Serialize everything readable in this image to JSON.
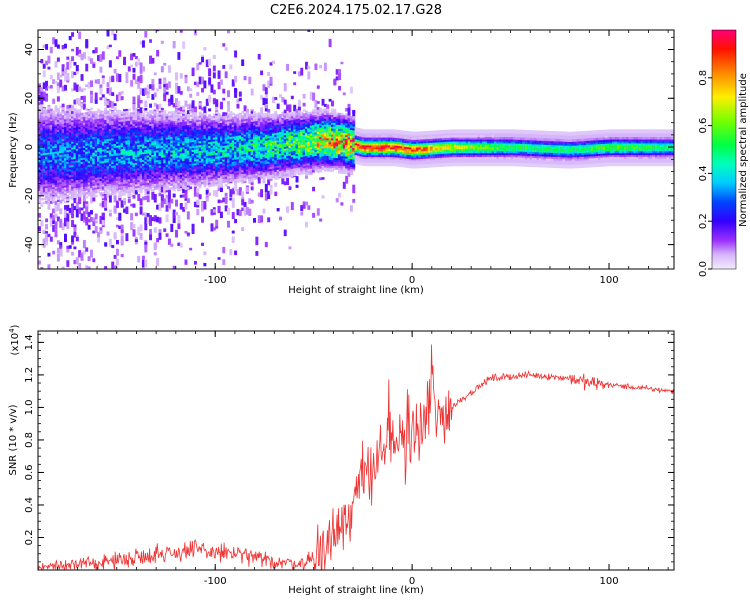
{
  "figure": {
    "title": "C2E6.2024.175.02.17.G28"
  },
  "chart_data": [
    {
      "type": "heatmap",
      "name": "spectrogram",
      "xlabel": "Height of straight line (km)",
      "ylabel": "Frequency (Hz)",
      "xlim": [
        -190,
        133
      ],
      "ylim": [
        -50,
        48
      ],
      "xticks": [
        -100,
        0,
        100
      ],
      "xtick_labels": [
        "-100",
        "0",
        "100"
      ],
      "yticks": [
        -40,
        -20,
        0,
        20,
        40
      ],
      "ytick_labels": [
        "-40",
        "-20",
        "0",
        "20",
        "40"
      ],
      "colorbar": {
        "label": "Normalized spectral amplitude",
        "range": [
          0,
          1
        ],
        "ticks": [
          0.0,
          0.2,
          0.4,
          0.6,
          0.8
        ],
        "tick_labels": [
          "0.0",
          "0.2",
          "0.4",
          "0.6",
          "0.8"
        ],
        "colormap": "rainbow-violet-to-red"
      },
      "band_profile": {
        "x": [
          -190,
          -150,
          -100,
          -80,
          -60,
          -45,
          -35,
          -25,
          -10,
          0,
          20,
          50,
          80,
          100,
          133
        ],
        "center_hz": [
          -3,
          -2,
          -1,
          0,
          1.5,
          3,
          2,
          0,
          0,
          -1,
          0,
          0,
          -1,
          0,
          0
        ],
        "peak_amplitude": [
          0.3,
          0.35,
          0.4,
          0.45,
          0.55,
          0.75,
          0.85,
          0.95,
          0.95,
          0.9,
          0.7,
          0.55,
          0.5,
          0.6,
          0.5
        ]
      }
    },
    {
      "type": "line",
      "name": "snr",
      "xlabel": "Height of straight line (km)",
      "ylabel": "SNR (10 * v/v)",
      "y_scale_label": "(x10",
      "y_scale_exp": "4",
      "y_scale_close": ")",
      "xlim": [
        -190,
        133
      ],
      "ylim": [
        0,
        1.47
      ],
      "xticks": [
        -100,
        0,
        100
      ],
      "xtick_labels": [
        "-100",
        "0",
        "100"
      ],
      "yticks": [
        0.2,
        0.4,
        0.6,
        0.8,
        1.0,
        1.2,
        1.4
      ],
      "ytick_labels": [
        "0.2",
        "0.4",
        "0.6",
        "0.8",
        "1.0",
        "1.2",
        "1.4"
      ],
      "color": "#ee3333",
      "x": [
        -190,
        -170,
        -150,
        -130,
        -110,
        -90,
        -70,
        -55,
        -45,
        -35,
        -25,
        -15,
        -5,
        5,
        10,
        15,
        25,
        40,
        60,
        80,
        90,
        100,
        115,
        133
      ],
      "y": [
        0.02,
        0.03,
        0.06,
        0.1,
        0.12,
        0.1,
        0.05,
        0.04,
        0.12,
        0.3,
        0.55,
        0.75,
        0.8,
        0.85,
        0.95,
        0.95,
        1.05,
        1.18,
        1.2,
        1.18,
        1.15,
        1.14,
        1.12,
        1.1
      ]
    }
  ]
}
